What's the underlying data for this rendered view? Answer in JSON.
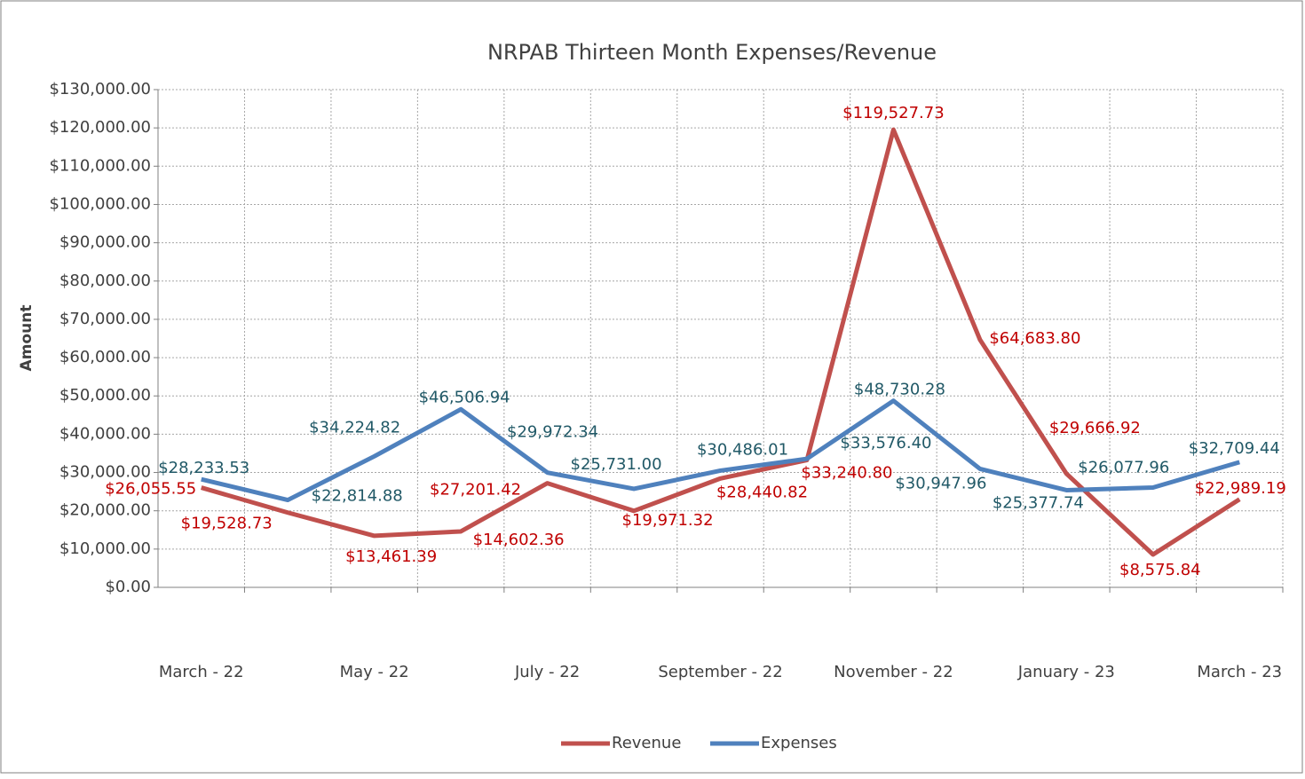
{
  "chart_data": {
    "type": "line",
    "title": "NRPAB Thirteen Month Expenses/Revenue",
    "y_label": "Amount",
    "categories": [
      "March - 22",
      null,
      "May - 22",
      null,
      "July - 22",
      null,
      "September - 22",
      null,
      "November - 22",
      null,
      "January - 23",
      null,
      "March - 23"
    ],
    "series": [
      {
        "name": "Revenue",
        "color": "#c0504d",
        "label_color": "#c00000",
        "values": [
          26055.55,
          19528.73,
          13461.39,
          14602.36,
          27201.42,
          19971.32,
          28440.82,
          33240.8,
          119527.73,
          64683.8,
          29666.92,
          8575.84,
          22989.19
        ],
        "value_labels": [
          "$26,055.55",
          "$19,528.73",
          "$13,461.39",
          "$14,602.36",
          "$27,201.42",
          "$19,971.32",
          "$28,440.82",
          "$33,240.80",
          "$119,527.73",
          "$64,683.80",
          "$29,666.92",
          "$8,575.84",
          "$22,989.19"
        ]
      },
      {
        "name": "Expenses",
        "color": "#4f81bd",
        "label_color": "#215967",
        "values": [
          28233.53,
          22814.88,
          34224.82,
          46506.94,
          29972.34,
          25731.0,
          30486.01,
          33576.4,
          48730.28,
          30947.96,
          25377.74,
          26077.96,
          32709.44
        ],
        "value_labels": [
          "$28,233.53",
          "$22,814.88",
          "$34,224.82",
          "$46,506.94",
          "$29,972.34",
          "$25,731.00",
          "$30,486.01",
          "$33,576.40",
          "$48,730.28",
          "$30,947.96",
          "$25,377.74",
          "$26,077.96",
          "$32,709.44"
        ]
      }
    ],
    "ylim": [
      0,
      130000
    ],
    "yticks": [
      {
        "value": 0,
        "label": "$0.00"
      },
      {
        "value": 10000,
        "label": "$10,000.00"
      },
      {
        "value": 20000,
        "label": "$20,000.00"
      },
      {
        "value": 30000,
        "label": "$30,000.00"
      },
      {
        "value": 40000,
        "label": "$40,000.00"
      },
      {
        "value": 50000,
        "label": "$50,000.00"
      },
      {
        "value": 60000,
        "label": "$60,000.00"
      },
      {
        "value": 70000,
        "label": "$70,000.00"
      },
      {
        "value": 80000,
        "label": "$80,000.00"
      },
      {
        "value": 90000,
        "label": "$90,000.00"
      },
      {
        "value": 100000,
        "label": "$100,000.00"
      },
      {
        "value": 110000,
        "label": "$110,000.00"
      },
      {
        "value": 120000,
        "label": "$120,000.00"
      },
      {
        "value": 130000,
        "label": "$130,000.00"
      }
    ],
    "grid": true,
    "legend": "bottom"
  }
}
